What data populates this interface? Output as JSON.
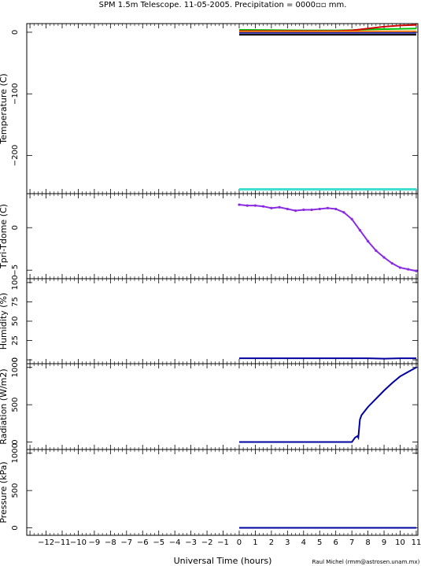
{
  "title": "SPM 1.5m Telescope. 11-05-2005. Precipitation = 0000▫▫ mm.",
  "xlabel": "Universal Time (hours)",
  "credit": "Raul Michel (rmm@astrosen.unam.mx)",
  "chart_data": [
    {
      "type": "line",
      "ylabel": "Temperature (C)",
      "ylim": [
        -262,
        14
      ],
      "yticks": [
        0,
        -100,
        -200
      ],
      "ytick_labels": [
        "0",
        "−100",
        "−200"
      ],
      "xlim": [
        -13.2,
        11.1
      ],
      "series": [
        {
          "color": "#00c000",
          "x": [
            0,
            2,
            4,
            6,
            7,
            8,
            9,
            10,
            11
          ],
          "y": [
            4,
            3.5,
            3,
            3,
            3.5,
            4.5,
            5,
            5.5,
            6
          ]
        },
        {
          "color": "#d00000",
          "x": [
            0,
            2,
            4,
            6,
            7,
            8,
            9,
            10,
            11
          ],
          "y": [
            2,
            2,
            2,
            2,
            3,
            6,
            9,
            11,
            12
          ]
        },
        {
          "color": "#ff8000",
          "x": [
            0,
            4,
            8,
            11
          ],
          "y": [
            1,
            1,
            1.5,
            1.5
          ]
        },
        {
          "color": "#2020a0",
          "x": [
            0,
            4,
            8,
            11
          ],
          "y": [
            -1,
            -1,
            -1,
            -1
          ]
        },
        {
          "color": "#000000",
          "x": [
            0,
            4,
            8,
            11
          ],
          "y": [
            -4,
            -4,
            -4,
            -4
          ]
        },
        {
          "color": "#40e0d0",
          "x": [
            0,
            4,
            8,
            11
          ],
          "y": [
            -255,
            -255,
            -255,
            -255
          ]
        }
      ]
    },
    {
      "type": "scatter",
      "ylabel": "Tpri-Tdome (C)",
      "ylim": [
        -6,
        4
      ],
      "yticks": [
        0,
        -5
      ],
      "ytick_labels": [
        "0",
        "−5"
      ],
      "xlim": [
        -13.2,
        11.1
      ],
      "series": [
        {
          "color": "#8a2be2",
          "x": [
            0,
            0.5,
            1,
            1.5,
            2,
            2.5,
            3,
            3.5,
            4,
            4.5,
            5,
            5.5,
            6,
            6.5,
            7,
            7.5,
            8,
            8.5,
            9,
            9.5,
            10,
            10.5,
            11
          ],
          "y": [
            2.7,
            2.6,
            2.6,
            2.5,
            2.3,
            2.4,
            2.2,
            2.0,
            2.1,
            2.1,
            2.2,
            2.3,
            2.2,
            1.8,
            1.0,
            -0.3,
            -1.6,
            -2.7,
            -3.5,
            -4.2,
            -4.7,
            -4.9,
            -5.1
          ]
        }
      ]
    },
    {
      "type": "line",
      "ylabel": "Humidity (%)",
      "ylim": [
        -5,
        105
      ],
      "yticks": [
        0,
        25,
        50,
        75,
        100
      ],
      "ytick_labels": [
        "0",
        "25",
        "50",
        "75",
        "100"
      ],
      "xlim": [
        -13.2,
        11.1
      ],
      "series": [
        {
          "color": "#0000a0",
          "x": [
            0,
            4,
            8,
            9,
            10,
            11
          ],
          "y": [
            2,
            2,
            2,
            1.5,
            2,
            2
          ]
        }
      ]
    },
    {
      "type": "line",
      "ylabel": "Radiation (W/m2)",
      "ylim": [
        -100,
        1050
      ],
      "yticks": [
        0,
        500,
        1000
      ],
      "ytick_labels": [
        "0",
        "500",
        "1000"
      ],
      "xlim": [
        -13.2,
        11.1
      ],
      "series": [
        {
          "color": "#0000a0",
          "x": [
            0,
            3,
            6,
            7,
            7.2,
            7.35,
            7.4,
            7.5,
            7.6,
            8,
            8.5,
            9,
            9.5,
            10,
            10.5,
            11
          ],
          "y": [
            0,
            0,
            0,
            0,
            60,
            80,
            60,
            300,
            360,
            470,
            580,
            690,
            790,
            880,
            940,
            1000
          ]
        }
      ]
    },
    {
      "type": "line",
      "ylabel": "Pressure (kPa)",
      "ylim": [
        -100,
        1050
      ],
      "yticks": [
        0,
        500,
        1000
      ],
      "ytick_labels": [
        "0",
        "500",
        "1000"
      ],
      "xlim": [
        -13.2,
        11.1
      ],
      "xticks": [
        -12,
        -11,
        -10,
        -9,
        -8,
        -7,
        -6,
        -5,
        -4,
        -3,
        -2,
        -1,
        0,
        1,
        2,
        3,
        4,
        5,
        6,
        7,
        8,
        9,
        10,
        11
      ],
      "xtick_labels": [
        "−12",
        "−11",
        "−10",
        "−9",
        "−8",
        "−7",
        "−6",
        "−5",
        "−4",
        "−3",
        "−2",
        "−1",
        "0",
        "1",
        "2",
        "3",
        "4",
        "5",
        "6",
        "7",
        "8",
        "9",
        "10",
        "11"
      ],
      "series": [
        {
          "color": "#0000a0",
          "x": [
            0,
            11
          ],
          "y": [
            0,
            0
          ]
        }
      ]
    }
  ]
}
